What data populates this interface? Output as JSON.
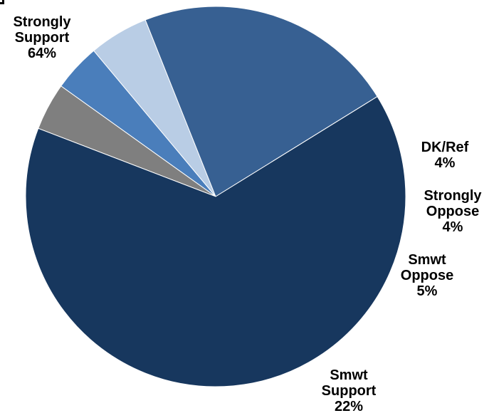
{
  "chart_data": {
    "type": "pie",
    "slices": [
      {
        "name": "DK/Ref",
        "label_lines": [
          "DK/Ref"
        ],
        "value": 4,
        "value_label": "4%",
        "color": "#7f7f7f"
      },
      {
        "name": "Strongly Oppose",
        "label_lines": [
          "Strongly",
          "Oppose"
        ],
        "value": 4,
        "value_label": "4%",
        "color": "#4a7ebb"
      },
      {
        "name": "Smwt Oppose",
        "label_lines": [
          "Smwt",
          "Oppose"
        ],
        "value": 5,
        "value_label": "5%",
        "color": "#b9cde5"
      },
      {
        "name": "Smwt Support",
        "label_lines": [
          "Smwt",
          "Support"
        ],
        "value": 22,
        "value_label": "22%",
        "color": "#376092"
      },
      {
        "name": "Strongly Support",
        "label_lines": [
          "Strongly",
          "Support"
        ],
        "value": 64,
        "value_label": "64%",
        "color": "#17375e"
      }
    ],
    "start_angle_deg": 291,
    "direction": "clockwise"
  }
}
